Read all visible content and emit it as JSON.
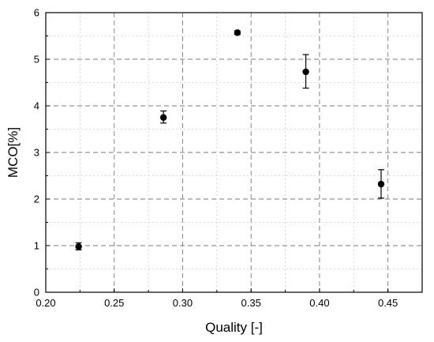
{
  "chart_data": {
    "type": "scatter",
    "title": "",
    "xlabel": "Quality [-]",
    "ylabel": "MCO[%]",
    "xlim": [
      0.2,
      0.475
    ],
    "ylim": [
      0,
      6
    ],
    "xticks": [
      0.2,
      0.25,
      0.3,
      0.35,
      0.4,
      0.45
    ],
    "xtick_labels": [
      "0.20",
      "0.25",
      "0.30",
      "0.35",
      "0.40",
      "0.45"
    ],
    "yticks": [
      0,
      1,
      2,
      3,
      4,
      5,
      6
    ],
    "ytick_labels": [
      "0",
      "1",
      "2",
      "3",
      "4",
      "5",
      "6"
    ],
    "minor_x_step": 0.025,
    "minor_y_step": 0.5,
    "grid": true,
    "grid_style": "dashed",
    "series": [
      {
        "marker": "filled-circle",
        "color": "#000000",
        "points": [
          {
            "x": 0.224,
            "y": 0.98,
            "yerr_low": 0.91,
            "yerr_high": 1.06
          },
          {
            "x": 0.286,
            "y": 3.75,
            "yerr_low": 3.63,
            "yerr_high": 3.89
          },
          {
            "x": 0.34,
            "y": 5.57,
            "yerr_low": 5.53,
            "yerr_high": 5.61
          },
          {
            "x": 0.39,
            "y": 4.73,
            "yerr_low": 4.38,
            "yerr_high": 5.1
          },
          {
            "x": 0.445,
            "y": 2.32,
            "yerr_low": 2.02,
            "yerr_high": 2.63
          }
        ]
      }
    ]
  }
}
